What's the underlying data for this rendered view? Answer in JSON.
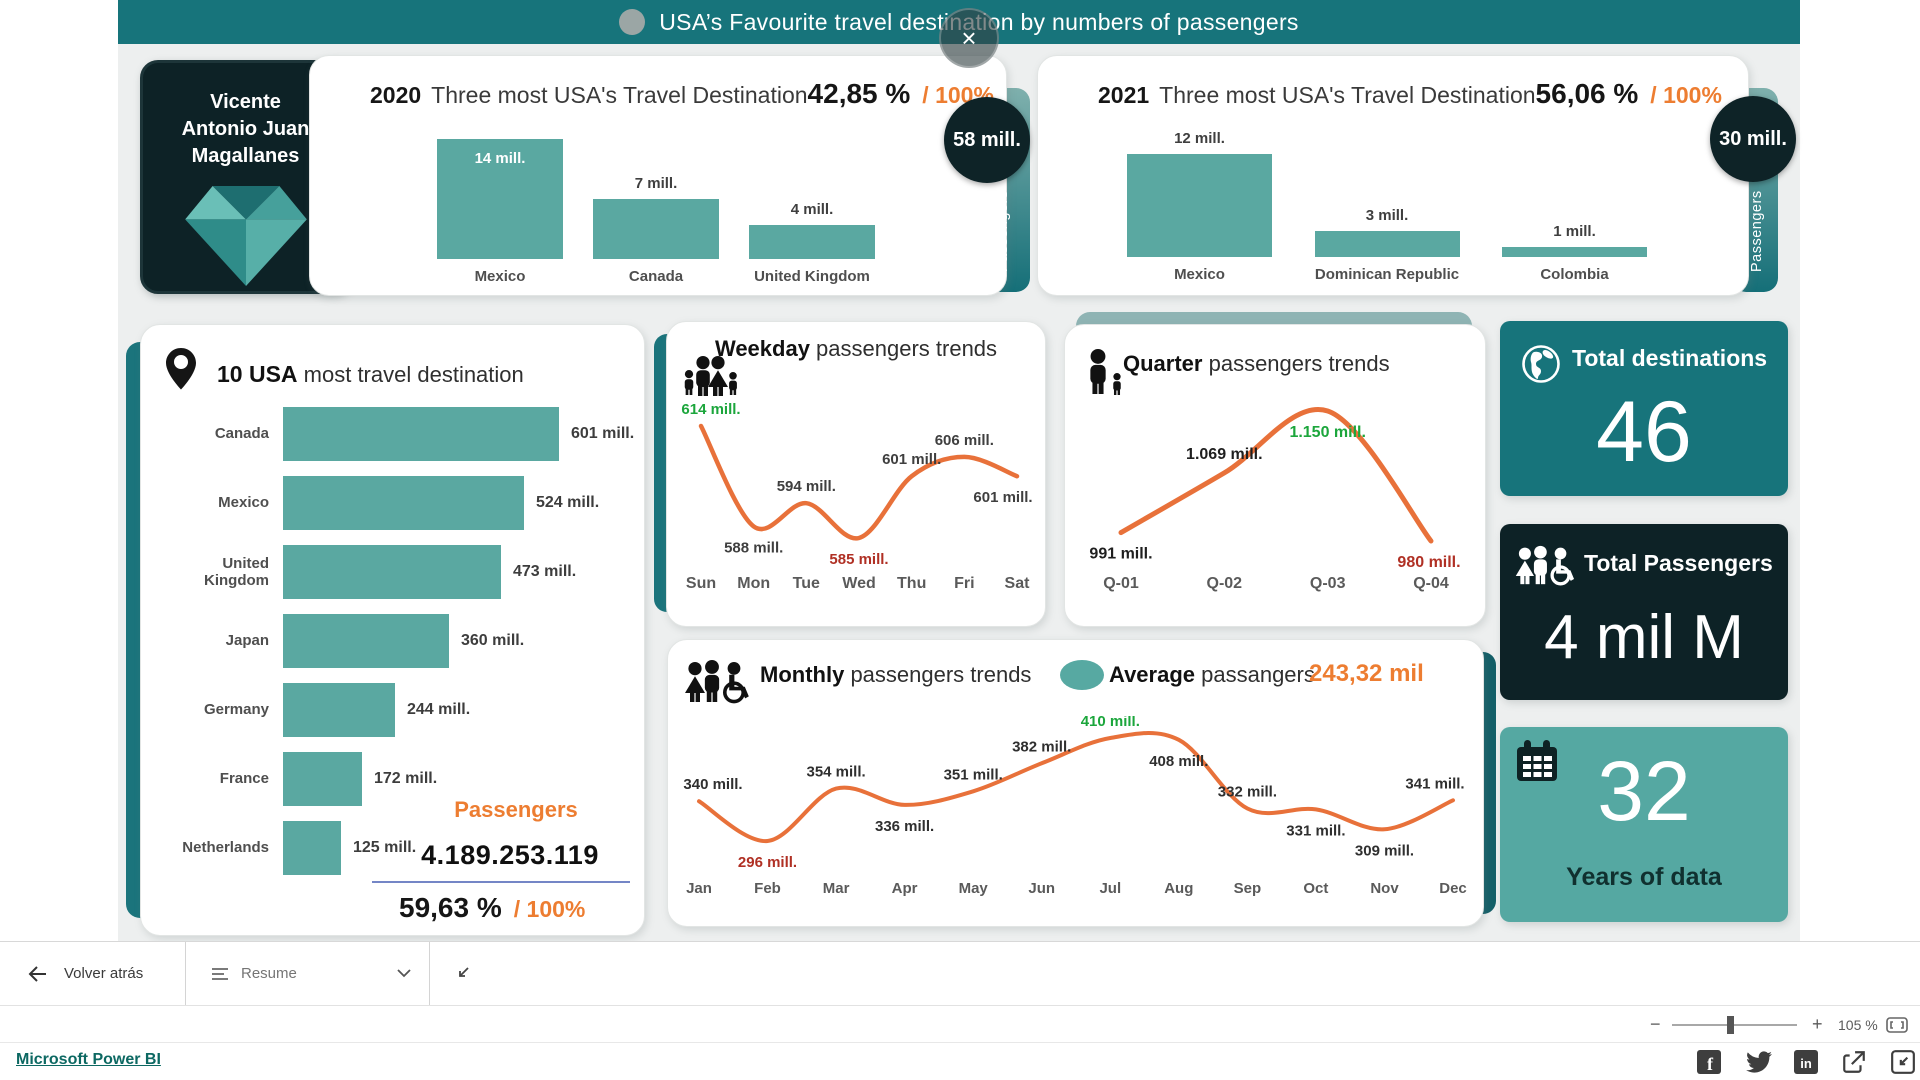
{
  "header": {
    "title": "USA’s Favourite travel destination by numbers of passengers",
    "close_glyph": "×"
  },
  "profile": {
    "lines": [
      "Vicente",
      "Antonio Juan",
      "Magallanes"
    ]
  },
  "colors": {
    "header_teal": "#17747B",
    "bar_teal": "#5AA8A1",
    "dark_navy": "#0D2226",
    "orange": "#ED7D31",
    "line_orange": "#E8713A",
    "green": "#1CA63C",
    "red": "#B03024",
    "divider_blue": "#7486C6",
    "years_card": "#55A8A2"
  },
  "year2020": {
    "year": "2020",
    "title": "Three most USA's Travel Destination",
    "pct": "42,85 %",
    "of": "/ 100%",
    "badge": "58 mill.",
    "ribbon": "Passengers"
  },
  "year2021": {
    "year": "2021",
    "title": "Three most USA's Travel Destination",
    "pct": "56,06 %",
    "of": "/ 100%",
    "badge": "30 mill.",
    "ribbon": "Passengers"
  },
  "top10": {
    "title_bold": "10 USA",
    "title_rest": " most travel destination",
    "passengers_label": "Passengers",
    "total": "4.189.253.119",
    "pct": "59,63 %",
    "of": "/ 100%"
  },
  "weekday": {
    "title_bold": "Weekday",
    "title_rest": " passengers trends"
  },
  "quarter": {
    "title_bold": "Quarter",
    "title_rest": " passengers trends"
  },
  "monthly": {
    "title_bold": "Monthly",
    "title_rest": " passengers trends",
    "legend_bold": "Average",
    "legend_rest": " passangers",
    "legend_value": "243,32 mil"
  },
  "kpi": {
    "destinations": {
      "title": "Total destinations",
      "value": "46"
    },
    "passengers": {
      "title": "Total Passengers",
      "value": "4 mil M"
    },
    "years": {
      "value": "32",
      "label": "Years of data"
    }
  },
  "toolbar": {
    "back": "Volver atrás",
    "menu": "Resume"
  },
  "zoombar": {
    "minus": "−",
    "plus": "+",
    "zoom": "105 %"
  },
  "footer": {
    "brand": "Microsoft Power BI",
    "icons": [
      "facebook-icon",
      "twitter-icon",
      "linkedin-icon",
      "share-icon",
      "compress-icon"
    ]
  },
  "chart_data": [
    {
      "id": "y2020",
      "type": "bar",
      "title": "2020 Three most USA's Travel Destination",
      "categories": [
        "Mexico",
        "Canada",
        "United Kingdom"
      ],
      "values": [
        14,
        7,
        4
      ],
      "labels": [
        "14 mill.",
        "7 mill.",
        "4 mill."
      ],
      "label_inside": [
        true,
        false,
        false
      ],
      "ylabel": "Passengers",
      "total_badge": "58 mill.",
      "share": "42,85 % / 100%"
    },
    {
      "id": "y2021",
      "type": "bar",
      "title": "2021 Three most USA's Travel Destination",
      "categories": [
        "Mexico",
        "Dominican Republic",
        "Colombia"
      ],
      "values": [
        12,
        3,
        1
      ],
      "labels": [
        "12 mill.",
        "3 mill.",
        "1 mill."
      ],
      "label_inside": [
        false,
        false,
        false
      ],
      "ylabel": "Passengers",
      "total_badge": "30 mill.",
      "share": "56,06 % / 100%"
    },
    {
      "id": "top10",
      "type": "bar",
      "orientation": "horizontal",
      "title": "10 USA most travel destination",
      "categories": [
        "Canada",
        "Mexico",
        "United Kingdom",
        "Japan",
        "Germany",
        "France",
        "Netherlands"
      ],
      "values": [
        601,
        524,
        473,
        360,
        244,
        172,
        125
      ],
      "labels": [
        "601 mill.",
        "524 mill.",
        "473 mill.",
        "360 mill.",
        "244 mill.",
        "172 mill.",
        "125 mill."
      ],
      "total": "4.189.253.119",
      "share": "59,63 % / 100%"
    },
    {
      "id": "weekday",
      "type": "line",
      "title": "Weekday passengers trends",
      "categories": [
        "Sun",
        "Mon",
        "Tue",
        "Wed",
        "Thu",
        "Fri",
        "Sat"
      ],
      "values": [
        614,
        588,
        594,
        585,
        601,
        606,
        601
      ],
      "line_color": "#E8713A",
      "points": [
        {
          "label": "614 mill.",
          "color": "#1CA63C",
          "pos": "above"
        },
        {
          "label": "588 mill.",
          "color": "#3F3F3F",
          "pos": "below"
        },
        {
          "label": "594 mill.",
          "color": "#3F3F3F",
          "pos": "above"
        },
        {
          "label": "585 mill.",
          "color": "#B03024",
          "pos": "below"
        },
        {
          "label": "601 mill.",
          "color": "#3F3F3F",
          "pos": "above"
        },
        {
          "label": "606 mill.",
          "color": "#3F3F3F",
          "pos": "above"
        },
        {
          "label": "601 mill.",
          "color": "#3F3F3F",
          "pos": "below"
        }
      ]
    },
    {
      "id": "quarter",
      "type": "line",
      "title": "Quarter passengers trends",
      "categories": [
        "Q-01",
        "Q-02",
        "Q-03",
        "Q-04"
      ],
      "values": [
        991,
        1069,
        1150,
        980
      ],
      "line_color": "#E8713A",
      "points": [
        {
          "label": "991 mill.",
          "color": "#1F1F1F",
          "pos": "below"
        },
        {
          "label": "1.069 mill.",
          "color": "#1F1F1F",
          "pos": "above"
        },
        {
          "label": "1.150 mill.",
          "color": "#1CA63C",
          "pos": "below"
        },
        {
          "label": "980 mill.",
          "color": "#B03024",
          "pos": "below"
        }
      ]
    },
    {
      "id": "monthly",
      "type": "line",
      "title": "Monthly passengers trends",
      "average": "243,32 mil",
      "categories": [
        "Jan",
        "Feb",
        "Mar",
        "Apr",
        "May",
        "Jun",
        "Jul",
        "Aug",
        "Sep",
        "Oct",
        "Nov",
        "Dec"
      ],
      "values": [
        340,
        296,
        354,
        336,
        351,
        382,
        410,
        408,
        332,
        331,
        309,
        341
      ],
      "line_color": "#E8713A",
      "points": [
        {
          "label": "340 mill.",
          "color": "#2F2F2F",
          "pos": "above"
        },
        {
          "label": "296 mill.",
          "color": "#B03024",
          "pos": "below"
        },
        {
          "label": "354 mill.",
          "color": "#2F2F2F",
          "pos": "above"
        },
        {
          "label": "336 mill.",
          "color": "#2F2F2F",
          "pos": "below"
        },
        {
          "label": "351 mill.",
          "color": "#2F2F2F",
          "pos": "above"
        },
        {
          "label": "382 mill.",
          "color": "#2F2F2F",
          "pos": "above"
        },
        {
          "label": "410 mill.",
          "color": "#1CA63C",
          "pos": "above"
        },
        {
          "label": "408 mill.",
          "color": "#2F2F2F",
          "pos": "below"
        },
        {
          "label": "332 mill.",
          "color": "#2F2F2F",
          "pos": "above"
        },
        {
          "label": "331 mill.",
          "color": "#2F2F2F",
          "pos": "below"
        },
        {
          "label": "309 mill.",
          "color": "#2F2F2F",
          "pos": "below"
        },
        {
          "label": "341 mill.",
          "color": "#2F2F2F",
          "pos": "above"
        }
      ]
    }
  ]
}
